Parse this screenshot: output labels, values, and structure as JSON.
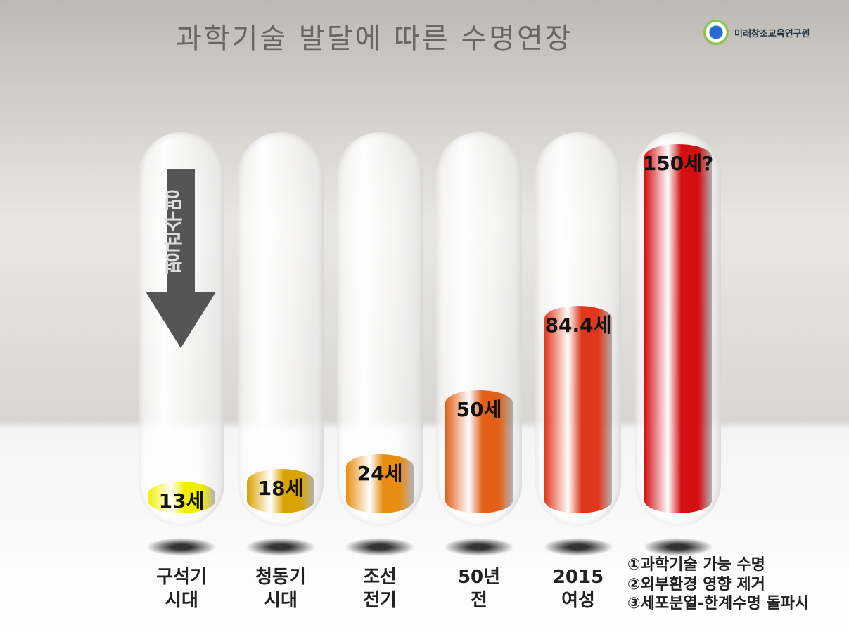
{
  "chart_data": {
    "type": "bar",
    "title": "과학기술 발달에 따른 수명연장",
    "logo_text": "미래창조교육연구원",
    "arrow_label": "평균수명",
    "categories": [
      "구석기\n시대",
      "청동기\n시대",
      "조선\n전기",
      "50년\n전",
      "2015\n여성",
      "①과학기술 가능 수명\n②외부환경 영향 제거\n③세포분열-한계수명 돌파시"
    ],
    "values": [
      13,
      18,
      24,
      50,
      84.4,
      150
    ],
    "value_labels": [
      "13세",
      "18세",
      "24세",
      "50세",
      "84.4세",
      "150세?"
    ],
    "colors": [
      "#f2ee00",
      "#d9a300",
      "#e98c12",
      "#e2601a",
      "#e0381c",
      "#d30f12"
    ]
  }
}
